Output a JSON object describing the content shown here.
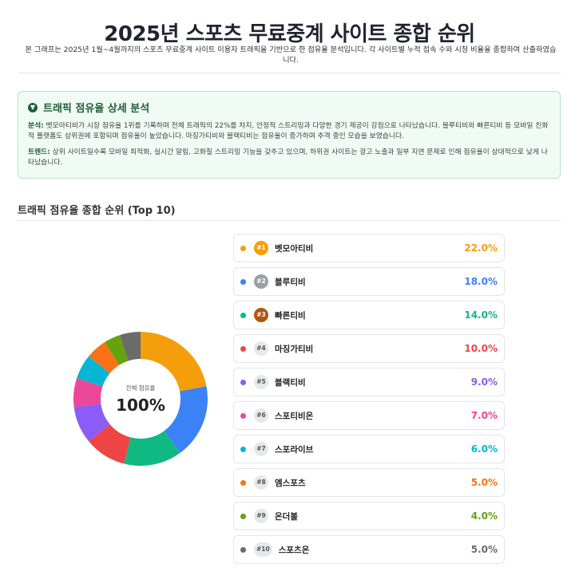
{
  "header": {
    "title": "2025년 스포츠 무료중계 사이트 종합 순위",
    "subtitle": "본 그래프는 2025년 1월~4월까지의 스포츠 무료중계 사이트 이용자 트래픽을 기반으로 한 점유율 분석입니다. 각 사이트별 누적 접속 수와 시청 비율을 종합하여 산출하였습니다."
  },
  "analysis": {
    "title": "트래픽 점유율 상세 분석",
    "icon": "chevron-down-circle-icon",
    "paragraphs": [
      {
        "label": "분석:",
        "text": " 벳모아티비가 시장 점유율 1위를 기록하며 전체 트래픽의 22%를 차지, 안정적 스트리밍과 다양한 경기 제공이 강점으로 나타났습니다. 블루티비와 빠른티비 등 모바일 친화적 플랫폼도 상위권에 포함되며 점유율이 높았습니다. 마징가티비와 블랙티비는 점유율이 증가하며 추격 중인 모습을 보였습니다."
      },
      {
        "label": "트렌드:",
        "text": " 상위 사이트일수록 모바일 최적화, 실시간 알림, 고화질 스트리밍 기능을 갖추고 있으며, 하위권 사이트는 광고 노출과 일부 지연 문제로 인해 점유율이 상대적으로 낮게 나타났습니다."
      }
    ]
  },
  "section": {
    "title": "트래픽 점유율 종합 순위 (Top 10)"
  },
  "donut": {
    "center_label": "전체 점유율",
    "center_value": "100%"
  },
  "chart_data": {
    "type": "pie",
    "title": "트래픽 점유율 종합 순위 (Top 10)",
    "categories": [
      "벳모아티비",
      "블루티비",
      "빠른티비",
      "마징가티비",
      "블랙티비",
      "스포티비온",
      "스포라이브",
      "엠스포츠",
      "온더볼",
      "스포츠온"
    ],
    "values": [
      22.0,
      18.0,
      14.0,
      10.0,
      9.0,
      7.0,
      6.0,
      5.0,
      4.0,
      5.0
    ],
    "colors": [
      "#f59e0b",
      "#3b82f6",
      "#10b981",
      "#ef4444",
      "#8b5cf6",
      "#ec4899",
      "#06b6d4",
      "#f97316",
      "#65a30d",
      "#6b6b6b"
    ],
    "ranks": [
      "#1",
      "#2",
      "#3",
      "#4",
      "#5",
      "#6",
      "#7",
      "#8",
      "#9",
      "#10"
    ],
    "labels": [
      "22.0%",
      "18.0%",
      "14.0%",
      "10.0%",
      "9.0%",
      "7.0%",
      "6.0%",
      "5.0%",
      "4.0%",
      "5.0%"
    ]
  }
}
